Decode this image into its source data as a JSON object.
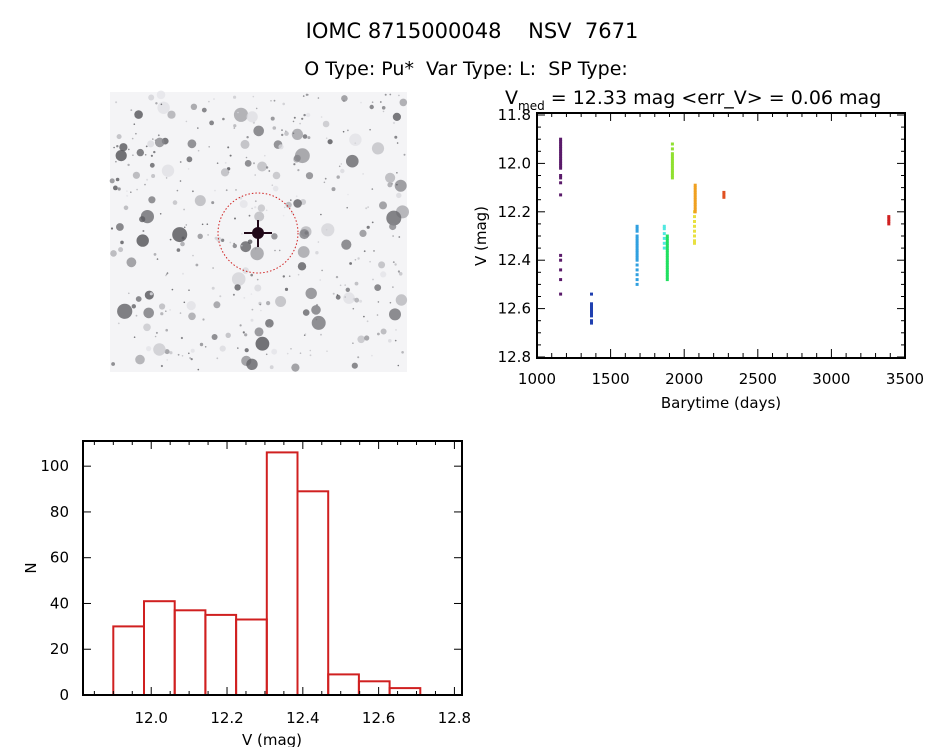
{
  "header": {
    "title": "IOMC 8715000048    NSV  7671",
    "subtitle": "O Type: Pu*  Var Type: L:  SP Type:"
  },
  "image_panel": {
    "description_icon": "star-field-image",
    "marker_color": "#d02020"
  },
  "chart_data": [
    {
      "type": "scatter",
      "title_prefix": "V",
      "title_sub": "med",
      "title_rest": " = 12.33 mag <err_V> = 0.06 mag",
      "xlabel": "Barytime (days)",
      "ylabel": "V (mag)",
      "xlim": [
        1000,
        3500
      ],
      "ylim": [
        12.8,
        11.8
      ],
      "y_inverted": true,
      "xticks": [
        "1000",
        "1500",
        "2000",
        "2500",
        "3000",
        "3500"
      ],
      "yticks": [
        "11.8",
        "12.0",
        "12.2",
        "12.4",
        "12.6",
        "12.8"
      ],
      "grid": false,
      "series": [
        {
          "color": "#5a1a6a",
          "x": 1160,
          "v": [
            11.9,
            11.91,
            11.92,
            11.93,
            11.94,
            11.95,
            11.96,
            11.97,
            11.98,
            11.99,
            12.0,
            12.01,
            12.02,
            12.05,
            12.06,
            12.08,
            12.13,
            12.38,
            12.4,
            12.44,
            12.48,
            12.54
          ]
        },
        {
          "color": "#2040b0",
          "x": 1370,
          "v": [
            12.54,
            12.58,
            12.59,
            12.6,
            12.61,
            12.62,
            12.63,
            12.65,
            12.66
          ]
        },
        {
          "color": "#30a0e0",
          "x": 1680,
          "v": [
            12.26,
            12.27,
            12.28,
            12.3,
            12.31,
            12.32,
            12.33,
            12.34,
            12.35,
            12.36,
            12.37,
            12.38,
            12.39,
            12.4,
            12.42,
            12.44,
            12.46,
            12.48,
            12.5
          ]
        },
        {
          "color": "#50e8e0",
          "x": 1865,
          "v": [
            12.26,
            12.27,
            12.29,
            12.31,
            12.33,
            12.35
          ]
        },
        {
          "color": "#20e060",
          "x": 1885,
          "v": [
            12.3,
            12.31,
            12.32,
            12.33,
            12.34,
            12.35,
            12.36,
            12.37,
            12.38,
            12.39,
            12.4,
            12.41,
            12.42,
            12.43,
            12.44,
            12.45,
            12.46,
            12.47,
            12.48
          ]
        },
        {
          "color": "#90e030",
          "x": 1920,
          "v": [
            11.92,
            11.94,
            11.96,
            11.97,
            11.98,
            11.99,
            12.0,
            12.01,
            12.02,
            12.03,
            12.04,
            12.05,
            12.06
          ]
        },
        {
          "color": "#e8e040",
          "x": 2070,
          "v": [
            12.2,
            12.22,
            12.24,
            12.26,
            12.28,
            12.3,
            12.32,
            12.33
          ]
        },
        {
          "color": "#f0a020",
          "x": 2075,
          "v": [
            12.09,
            12.1,
            12.11,
            12.12,
            12.13,
            12.14,
            12.15,
            12.16,
            12.17,
            12.18,
            12.19,
            12.2
          ]
        },
        {
          "color": "#e05020",
          "x": 2270,
          "v": [
            12.12,
            12.13,
            12.14
          ]
        },
        {
          "color": "#d02020",
          "x": 3390,
          "v": [
            12.22,
            12.23,
            12.24,
            12.25
          ]
        }
      ]
    },
    {
      "type": "bar",
      "histogram": true,
      "xlabel": "V (mag)",
      "ylabel": "N",
      "xlim": [
        11.82,
        12.82
      ],
      "ylim": [
        0,
        111
      ],
      "xticks": [
        "12.0",
        "12.2",
        "12.4",
        "12.6",
        "12.8"
      ],
      "yticks": [
        "0",
        "20",
        "40",
        "60",
        "80",
        "100"
      ],
      "bin_edges": [
        11.9,
        11.981,
        12.062,
        12.143,
        12.224,
        12.305,
        12.386,
        12.467,
        12.548,
        12.629,
        12.71
      ],
      "values": [
        30,
        41,
        37,
        35,
        33,
        106,
        89,
        9,
        6,
        3
      ],
      "bar_color": "#d02020",
      "grid": false
    }
  ]
}
